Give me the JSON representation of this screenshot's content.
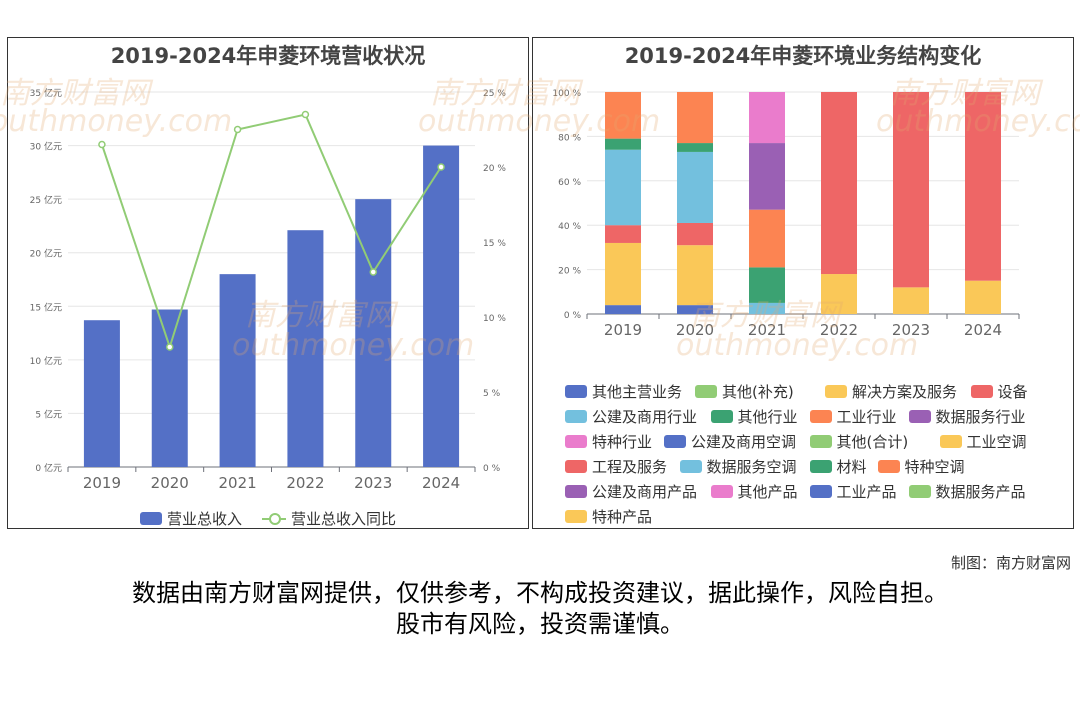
{
  "credit": "制图：南方财富网",
  "disclaimer": {
    "line1": "数据由南方财富网提供，仅供参考，不构成投资建议，据此操作，风险自担。",
    "line2": "股市有风险，投资需谨慎。"
  },
  "watermark_text": "南方财富网",
  "watermark_text2": "outhmoney.com",
  "colors": {
    "bar": "#5470c6",
    "line": "#91cc75",
    "axis_text": "#666666",
    "grid": "#e6e6e6"
  },
  "chart_data": [
    {
      "type": "bar",
      "title": "2019-2024年申菱环境营收状况",
      "categories": [
        "2019",
        "2020",
        "2021",
        "2022",
        "2023",
        "2024"
      ],
      "yticks_left": [
        "0 亿元",
        "5 亿元",
        "10 亿元",
        "15 亿元",
        "20 亿元",
        "25 亿元",
        "30 亿元",
        "35 亿元"
      ],
      "yticks_right": [
        "0 %",
        "5 %",
        "10 %",
        "15 %",
        "20 %",
        "25 %"
      ],
      "ylim_left": [
        0,
        35
      ],
      "ylim_right": [
        0,
        25
      ],
      "series": [
        {
          "name": "营业总收入",
          "type": "bar",
          "axis": "left",
          "color": "#5470c6",
          "values": [
            13.7,
            14.7,
            18.0,
            22.1,
            25.0,
            30.0
          ]
        },
        {
          "name": "营业总收入同比",
          "type": "line",
          "axis": "right",
          "color": "#91cc75",
          "values": [
            21.5,
            8.0,
            22.5,
            23.5,
            13.0,
            20.0
          ]
        }
      ],
      "legend_position": "bottom"
    },
    {
      "type": "bar",
      "stacked": true,
      "title": "2019-2024年申菱环境业务结构变化",
      "categories": [
        "2019",
        "2020",
        "2021",
        "2022",
        "2023",
        "2024"
      ],
      "yticks": [
        "0 %",
        "20 %",
        "40 %",
        "60 %",
        "80 %",
        "100 %"
      ],
      "ylim": [
        0,
        100
      ],
      "series": [
        {
          "name": "其他主营业务",
          "color": "#5470c6",
          "values": [
            4,
            4,
            0,
            0,
            0,
            0
          ]
        },
        {
          "name": "其他(补充)",
          "color": "#91cc75",
          "values": [
            0,
            0,
            0,
            0,
            0,
            0
          ]
        },
        {
          "name": "解决方案及服务",
          "color": "#fac858",
          "values": [
            28,
            27,
            0,
            18,
            12,
            15
          ]
        },
        {
          "name": "设备",
          "color": "#ee6666",
          "values": [
            8,
            10,
            0,
            82,
            88,
            85
          ]
        },
        {
          "name": "公建及商用行业",
          "color": "#73c0de",
          "values": [
            34,
            32,
            5,
            0,
            0,
            0
          ]
        },
        {
          "name": "其他行业",
          "color": "#3ba272",
          "values": [
            5,
            4,
            16,
            0,
            0,
            0
          ]
        },
        {
          "name": "工业行业",
          "color": "#fc8452",
          "values": [
            21,
            23,
            26,
            0,
            0,
            0
          ]
        },
        {
          "name": "数据服务行业",
          "color": "#9a60b4",
          "values": [
            0,
            0,
            30,
            0,
            0,
            0
          ]
        },
        {
          "name": "特种行业",
          "color": "#ea7ccc",
          "values": [
            0,
            0,
            23,
            0,
            0,
            0
          ]
        },
        {
          "name": "公建及商用空调",
          "color": "#5470c6",
          "values": [
            0,
            0,
            0,
            0,
            0,
            0
          ]
        },
        {
          "name": "其他(合计)",
          "color": "#91cc75",
          "values": [
            0,
            0,
            0,
            0,
            0,
            0
          ]
        },
        {
          "name": "工业空调",
          "color": "#fac858",
          "values": [
            0,
            0,
            0,
            0,
            0,
            0
          ]
        },
        {
          "name": "工程及服务",
          "color": "#ee6666",
          "values": [
            0,
            0,
            0,
            0,
            0,
            0
          ]
        },
        {
          "name": "数据服务空调",
          "color": "#73c0de",
          "values": [
            0,
            0,
            0,
            0,
            0,
            0
          ]
        },
        {
          "name": "材料",
          "color": "#3ba272",
          "values": [
            0,
            0,
            0,
            0,
            0,
            0
          ]
        },
        {
          "name": "特种空调",
          "color": "#fc8452",
          "values": [
            0,
            0,
            0,
            0,
            0,
            0
          ]
        },
        {
          "name": "公建及商用产品",
          "color": "#9a60b4",
          "values": [
            0,
            0,
            0,
            0,
            0,
            0
          ]
        },
        {
          "name": "其他产品",
          "color": "#ea7ccc",
          "values": [
            0,
            0,
            0,
            0,
            0,
            0
          ]
        },
        {
          "name": "工业产品",
          "color": "#5470c6",
          "values": [
            0,
            0,
            0,
            0,
            0,
            0
          ]
        },
        {
          "name": "数据服务产品",
          "color": "#91cc75",
          "values": [
            0,
            0,
            0,
            0,
            0,
            0
          ]
        },
        {
          "name": "特种产品",
          "color": "#fac858",
          "values": [
            0,
            0,
            0,
            0,
            0,
            0
          ]
        }
      ],
      "legend_position": "bottom"
    }
  ]
}
